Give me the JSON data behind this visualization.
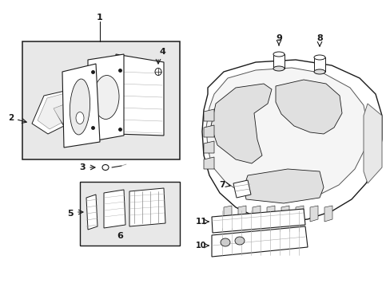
{
  "bg_color": "#ffffff",
  "line_color": "#1a1a1a",
  "fill_box": "#e8e8e8",
  "fill_white": "#ffffff",
  "figsize": [
    4.89,
    3.6
  ],
  "dpi": 100,
  "label_fs": 7.5,
  "lw_main": 0.9,
  "lw_thin": 0.5
}
